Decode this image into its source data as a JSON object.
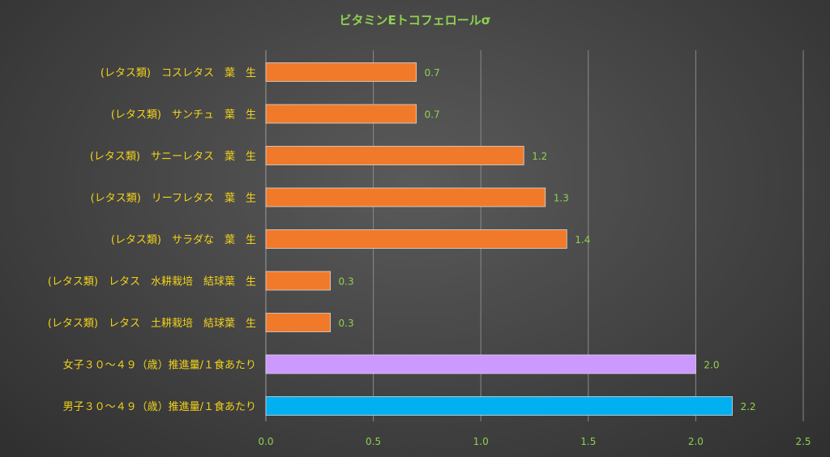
{
  "chart_data": {
    "type": "bar",
    "orientation": "horizontal",
    "title": "ビタミンEトコフェロールσ",
    "categories": [
      "(レタス類)　コスレタス　葉　生",
      "(レタス類)　サンチュ　葉　生",
      "(レタス類)　サニーレタス　葉　生",
      "(レタス類)　リーフレタス　葉　生",
      "(レタス類)　サラダな　葉　生",
      "(レタス類)　レタス　水耕栽培　結球葉　生",
      "(レタス類)　レタス　土耕栽培　結球葉　生",
      "女子３０～４９（歳）推進量/１食あたり",
      "男子３０～４９（歳）推進量/１食あたり"
    ],
    "values": [
      0.7,
      0.7,
      1.2,
      1.3,
      1.4,
      0.3,
      0.3,
      2.0,
      2.2
    ],
    "value_labels": [
      "0.7",
      "0.7",
      "1.2",
      "1.3",
      "1.4",
      "0.3",
      "0.3",
      "2.0",
      "2.2"
    ],
    "bar_values_exact": [
      0.7,
      0.7,
      1.2,
      1.3,
      1.4,
      0.3,
      0.3,
      2.0,
      2.17
    ],
    "colors": [
      "#f07a2a",
      "#f07a2a",
      "#f07a2a",
      "#f07a2a",
      "#f07a2a",
      "#f07a2a",
      "#f07a2a",
      "#cc99ff",
      "#00b0f0"
    ],
    "xlim": [
      0,
      2.5
    ],
    "xticks": [
      "0.0",
      "0.5",
      "1.0",
      "1.5",
      "2.0",
      "2.5"
    ],
    "xlabel": "",
    "ylabel": "",
    "grid": true,
    "legend": "none"
  }
}
